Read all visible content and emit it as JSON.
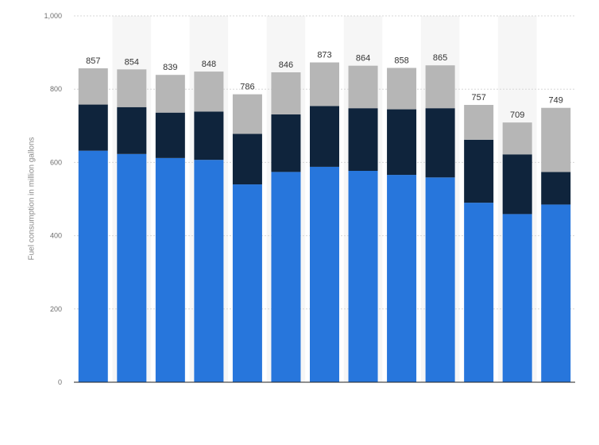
{
  "chart_data": {
    "type": "bar",
    "stacked": true,
    "categories": [
      "",
      "",
      "",
      "",
      "",
      "",
      "",
      "",
      "",
      "",
      "",
      "",
      ""
    ],
    "series": [
      {
        "color": "#2776dc",
        "values": [
          632,
          623,
          612,
          607,
          540,
          574,
          588,
          577,
          566,
          559,
          490,
          459,
          485
        ]
      },
      {
        "color": "#0f243c",
        "values": [
          126,
          128,
          124,
          132,
          138,
          157,
          166,
          171,
          179,
          189,
          172,
          163,
          89
        ]
      },
      {
        "color": "#b6b6b6",
        "values": [
          99,
          103,
          103,
          109,
          108,
          115,
          119,
          116,
          113,
          117,
          95,
          87,
          175
        ]
      }
    ],
    "totals": [
      "857",
      "854",
      "839",
      "848",
      "786",
      "846",
      "873",
      "864",
      "858",
      "865",
      "757",
      "709",
      "749"
    ],
    "ylabel": "Fuel consumption in million gallons",
    "ylim": [
      0,
      1000
    ],
    "yticks": [
      {
        "value": 0,
        "label": "0"
      },
      {
        "value": 200,
        "label": "200"
      },
      {
        "value": 400,
        "label": "400"
      },
      {
        "value": 600,
        "label": "600"
      },
      {
        "value": 800,
        "label": "800"
      },
      {
        "value": 1000,
        "label": "1,000"
      }
    ],
    "grid": true,
    "legend": "none"
  }
}
